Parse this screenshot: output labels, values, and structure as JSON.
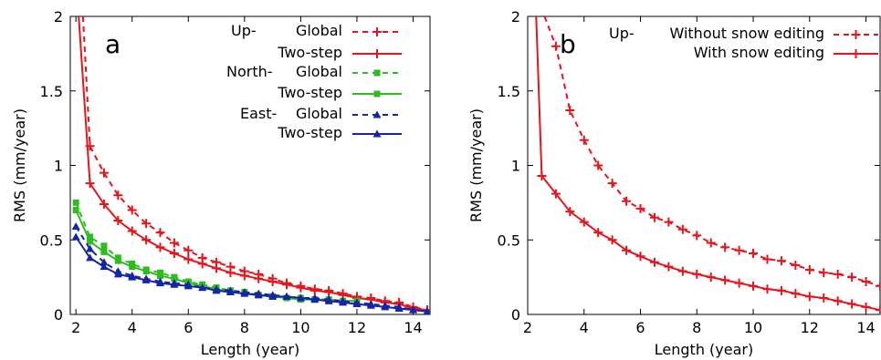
{
  "chart_data": [
    {
      "type": "line",
      "panel_label": "a",
      "xlabel": "Length (year)",
      "ylabel": "RMS (mm/year)",
      "xlim": [
        1.8,
        14.6
      ],
      "ylim": [
        0,
        2
      ],
      "xticks": [
        2,
        4,
        6,
        8,
        10,
        12,
        14
      ],
      "yticks": [
        0,
        0.5,
        1,
        1.5,
        2
      ],
      "ytick_labels": [
        "0",
        "0.5",
        "1",
        "1.5",
        "2"
      ],
      "grid": false,
      "legend_position": "top-right",
      "series": [
        {
          "name": "Global",
          "group": "Up-",
          "color": "#e8141c",
          "dashed": true,
          "marker": "plus",
          "x": [
            2.25,
            2.5,
            3,
            3.5,
            4,
            4.5,
            5,
            5.5,
            6,
            6.5,
            7,
            7.5,
            8,
            8.5,
            9,
            9.5,
            10,
            10.5,
            11,
            11.5,
            12,
            12.5,
            13,
            13.5,
            14,
            14.5
          ],
          "y": [
            2.0,
            1.13,
            0.95,
            0.8,
            0.7,
            0.61,
            0.55,
            0.48,
            0.43,
            0.38,
            0.35,
            0.32,
            0.29,
            0.27,
            0.24,
            0.21,
            0.19,
            0.17,
            0.16,
            0.14,
            0.12,
            0.11,
            0.09,
            0.08,
            0.05,
            0.03
          ]
        },
        {
          "name": "Two-step",
          "group": "",
          "color": "#e8141c",
          "dashed": false,
          "marker": "plus",
          "x": [
            2.1,
            2.5,
            3,
            3.5,
            4,
            4.5,
            5,
            5.5,
            6,
            6.5,
            7,
            7.5,
            8,
            8.5,
            9,
            9.5,
            10,
            10.5,
            11,
            11.5,
            12,
            12.5,
            13,
            13.5,
            14,
            14.5
          ],
          "y": [
            2.0,
            0.88,
            0.74,
            0.63,
            0.56,
            0.5,
            0.45,
            0.41,
            0.37,
            0.34,
            0.31,
            0.28,
            0.26,
            0.24,
            0.22,
            0.2,
            0.18,
            0.16,
            0.15,
            0.13,
            0.11,
            0.1,
            0.08,
            0.07,
            0.04,
            0.03
          ]
        },
        {
          "name": "Global",
          "group": "North-",
          "color": "#2ebd1e",
          "dashed": true,
          "marker": "square",
          "x": [
            2,
            2.5,
            3,
            3.5,
            4,
            4.5,
            5,
            5.5,
            6,
            6.5,
            7,
            7.5,
            8,
            8.5,
            9,
            9.5,
            10,
            10.5,
            11,
            11.5,
            12
          ],
          "y": [
            0.75,
            0.52,
            0.46,
            0.38,
            0.34,
            0.3,
            0.28,
            0.25,
            0.22,
            0.2,
            0.18,
            0.16,
            0.15,
            0.13,
            0.12,
            0.11,
            0.11,
            0.1,
            0.1,
            0.09,
            0.09
          ]
        },
        {
          "name": "Two-step",
          "group": "",
          "color": "#2ebd1e",
          "dashed": false,
          "marker": "square",
          "x": [
            2,
            2.5,
            3,
            3.5,
            4,
            4.5,
            5,
            5.5,
            6,
            6.5,
            7,
            7.5,
            8,
            8.5,
            9,
            9.5,
            10,
            10.5,
            11,
            11.5,
            12
          ],
          "y": [
            0.7,
            0.49,
            0.42,
            0.36,
            0.32,
            0.29,
            0.26,
            0.24,
            0.21,
            0.19,
            0.17,
            0.15,
            0.14,
            0.13,
            0.12,
            0.11,
            0.1,
            0.1,
            0.09,
            0.09,
            0.09
          ]
        },
        {
          "name": "Global",
          "group": "East-",
          "color": "#1426a6",
          "dashed": true,
          "marker": "triangle",
          "x": [
            2,
            2.5,
            3,
            3.5,
            4,
            4.5,
            5,
            5.5,
            6,
            6.5,
            7,
            7.5,
            8,
            8.5,
            9,
            9.5,
            10,
            10.5,
            11,
            11.5,
            12,
            12.5,
            13,
            13.5,
            14,
            14.5
          ],
          "y": [
            0.59,
            0.44,
            0.35,
            0.29,
            0.26,
            0.24,
            0.22,
            0.21,
            0.2,
            0.18,
            0.17,
            0.16,
            0.15,
            0.14,
            0.13,
            0.12,
            0.11,
            0.11,
            0.1,
            0.09,
            0.08,
            0.07,
            0.06,
            0.05,
            0.03,
            0.02
          ]
        },
        {
          "name": "Two-step",
          "group": "",
          "color": "#1426a6",
          "dashed": false,
          "marker": "triangle",
          "x": [
            2,
            2.5,
            3,
            3.5,
            4,
            4.5,
            5,
            5.5,
            6,
            6.5,
            7,
            7.5,
            8,
            8.5,
            9,
            9.5,
            10,
            10.5,
            11,
            11.5,
            12,
            12.5,
            13,
            13.5,
            14,
            14.5
          ],
          "y": [
            0.52,
            0.38,
            0.32,
            0.27,
            0.25,
            0.23,
            0.21,
            0.2,
            0.19,
            0.18,
            0.16,
            0.15,
            0.14,
            0.13,
            0.12,
            0.12,
            0.11,
            0.1,
            0.09,
            0.08,
            0.07,
            0.06,
            0.05,
            0.04,
            0.03,
            0.02
          ]
        }
      ]
    },
    {
      "type": "line",
      "panel_label": "b",
      "xlabel": "Length (year)",
      "ylabel": "RMS (mm/year)",
      "xlim": [
        2,
        14.5
      ],
      "ylim": [
        0,
        2
      ],
      "xticks": [
        2,
        4,
        6,
        8,
        10,
        12,
        14
      ],
      "yticks": [
        0,
        0.5,
        1,
        1.5,
        2
      ],
      "ytick_labels": [
        "0",
        "0.5",
        "1",
        "1.5",
        "2"
      ],
      "grid": false,
      "legend_position": "top-right",
      "series": [
        {
          "name": "Without snow editing",
          "group": "Up-",
          "color": "#e8141c",
          "dashed": true,
          "marker": "plus",
          "x": [
            2.6,
            3,
            3.5,
            4,
            4.5,
            5,
            5.5,
            6,
            6.5,
            7,
            7.5,
            8,
            8.5,
            9,
            9.5,
            10,
            10.5,
            11,
            11.5,
            12,
            12.5,
            13,
            13.5,
            14,
            14.5
          ],
          "y": [
            2.0,
            1.8,
            1.37,
            1.17,
            1.0,
            0.88,
            0.76,
            0.71,
            0.65,
            0.62,
            0.57,
            0.53,
            0.48,
            0.45,
            0.43,
            0.41,
            0.37,
            0.36,
            0.33,
            0.3,
            0.28,
            0.27,
            0.25,
            0.22,
            0.19
          ]
        },
        {
          "name": "With snow editing",
          "group": "",
          "color": "#e8141c",
          "dashed": false,
          "marker": "plus",
          "x": [
            2.3,
            2.5,
            3,
            3.5,
            4,
            4.5,
            5,
            5.5,
            6,
            6.5,
            7,
            7.5,
            8,
            8.5,
            9,
            9.5,
            10,
            10.5,
            11,
            11.5,
            12,
            12.5,
            13,
            13.5,
            14,
            14.5
          ],
          "y": [
            2.0,
            0.93,
            0.81,
            0.69,
            0.62,
            0.55,
            0.5,
            0.43,
            0.39,
            0.35,
            0.32,
            0.29,
            0.27,
            0.25,
            0.23,
            0.21,
            0.19,
            0.17,
            0.16,
            0.14,
            0.12,
            0.11,
            0.09,
            0.07,
            0.05,
            0.03
          ]
        }
      ]
    }
  ]
}
